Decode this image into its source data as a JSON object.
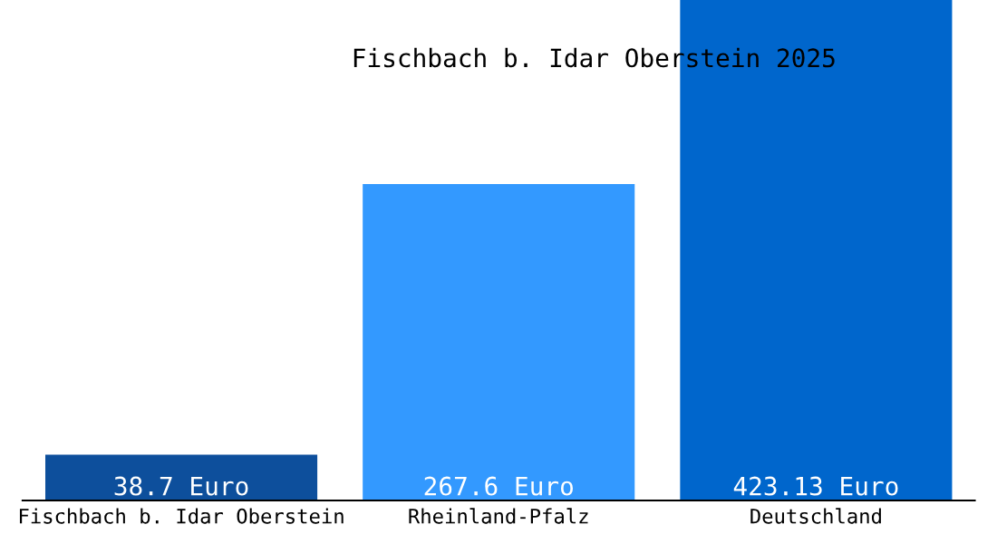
{
  "chart_data": {
    "type": "bar",
    "title": "Fischbach b. Idar Oberstein 2025",
    "categories": [
      "Fischbach b. Idar Oberstein",
      "Rheinland-Pfalz",
      "Deutschland"
    ],
    "values": [
      38.7,
      267.6,
      423.13
    ],
    "colors": [
      "#0d4f9c",
      "#3399ff",
      "#0066cc"
    ],
    "value_labels": [
      "38.7 Euro",
      "267.6 Euro",
      "423.13 Euro"
    ],
    "grid": false,
    "legend": false
  }
}
